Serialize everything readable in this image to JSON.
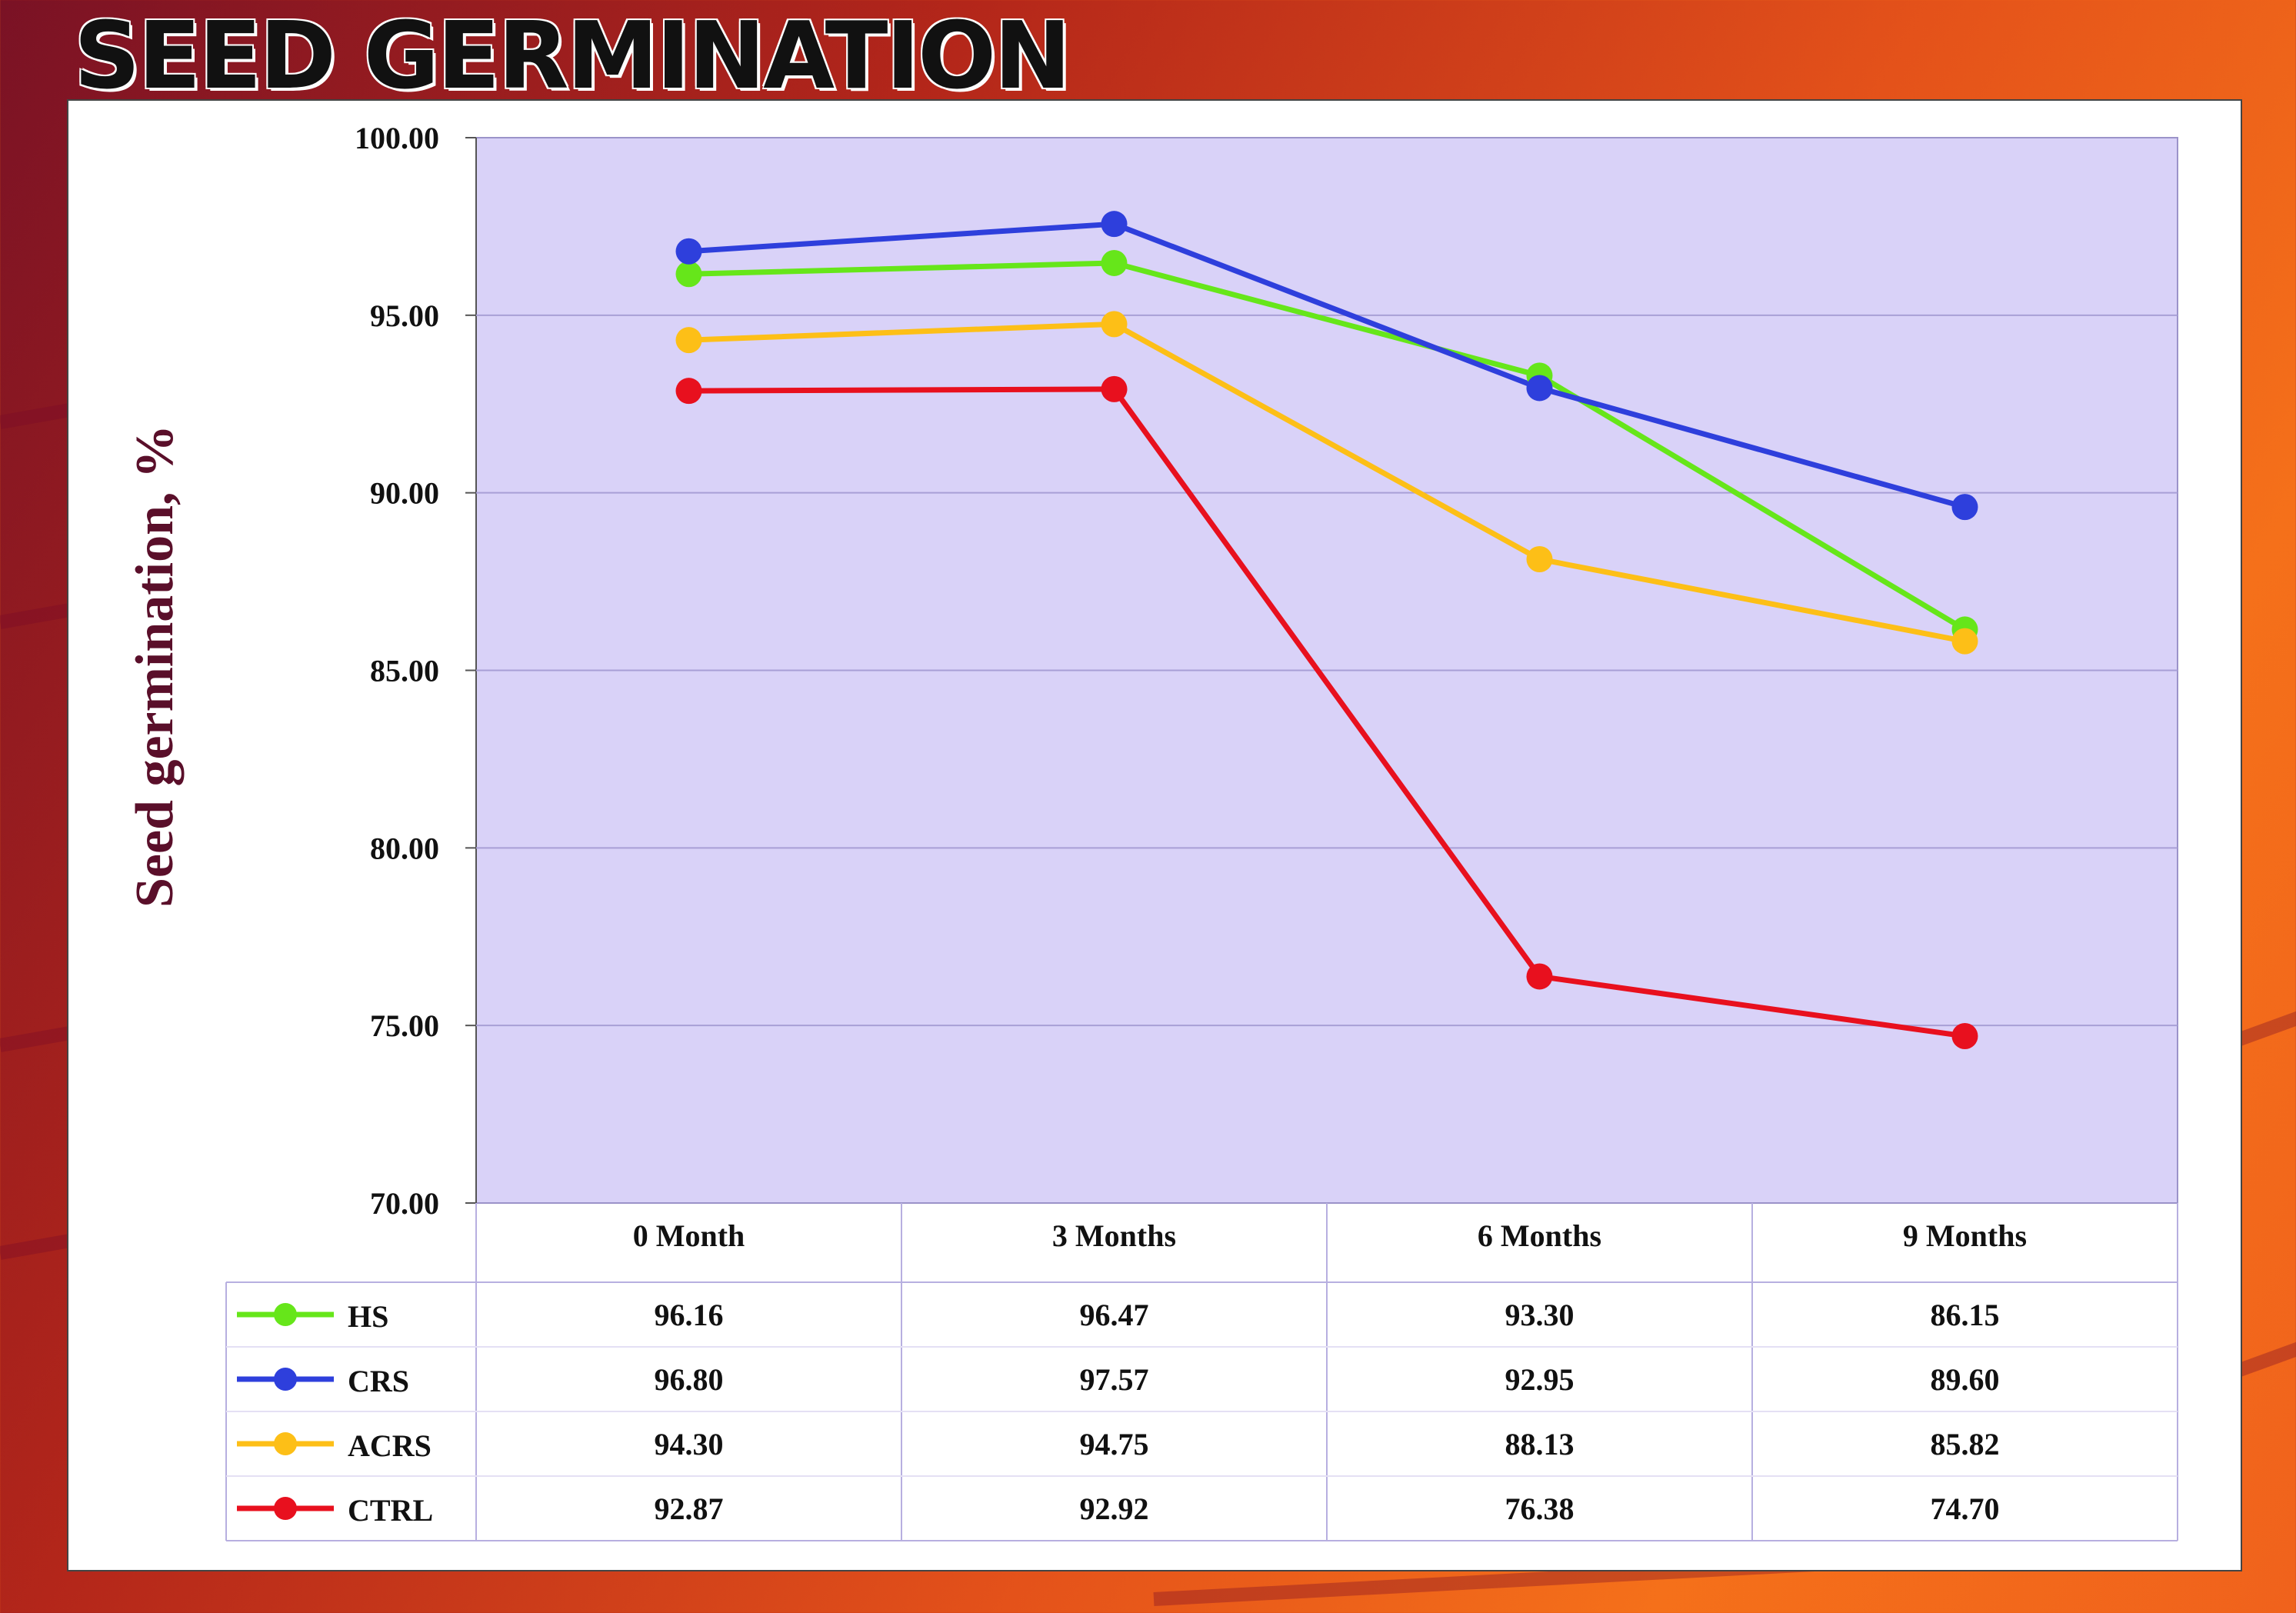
{
  "slide": {
    "title": "SEED GERMINATION"
  },
  "chart_data": {
    "type": "line",
    "title": "SEED GERMINATION",
    "xlabel": "",
    "ylabel": "Seed germination, %",
    "ylim": [
      70,
      100
    ],
    "yticks": [
      "70.00",
      "75.00",
      "80.00",
      "85.00",
      "90.00",
      "95.00",
      "100.00"
    ],
    "categories": [
      "0 Month",
      "3 Months",
      "6 Months",
      "9 Months"
    ],
    "grid": true,
    "legend": "data-table-below",
    "series": [
      {
        "name": "HS",
        "color": "#66e61a",
        "values": [
          96.16,
          96.47,
          93.3,
          86.15
        ],
        "labels": [
          "96.16",
          "96.47",
          "93.30",
          "86.15"
        ]
      },
      {
        "name": "CRS",
        "color": "#2e3fdc",
        "values": [
          96.8,
          97.57,
          92.95,
          89.6
        ],
        "labels": [
          "96.80",
          "97.57",
          "92.95",
          "89.60"
        ]
      },
      {
        "name": "ACRS",
        "color": "#fdbf17",
        "values": [
          94.3,
          94.75,
          88.13,
          85.82
        ],
        "labels": [
          "94.30",
          "94.75",
          "88.13",
          "85.82"
        ]
      },
      {
        "name": "CTRL",
        "color": "#e8101e",
        "values": [
          92.87,
          92.92,
          76.38,
          74.7
        ],
        "labels": [
          "92.87",
          "92.92",
          "76.38",
          "74.70"
        ]
      }
    ],
    "plot_background": "#d9d2f8"
  }
}
